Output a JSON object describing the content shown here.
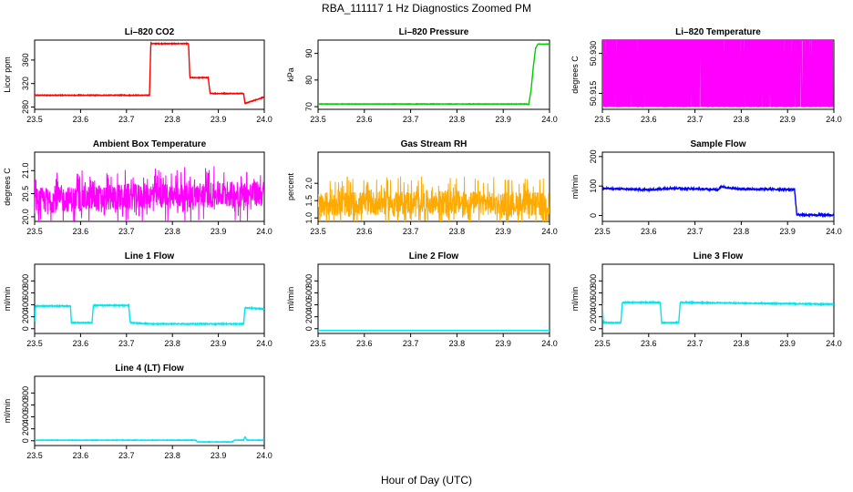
{
  "figure": {
    "title": "RBA_111117  1 Hz Diagnostics Zoomed PM",
    "xlabel": "Hour of Day (UTC)"
  },
  "chart_data": [
    {
      "type": "line",
      "title": "Li–820 CO2",
      "ylabel": "Licor ppm",
      "color": "#ff0000",
      "xlim": [
        23.5,
        24.0
      ],
      "ylim": [
        276,
        394
      ],
      "xticks": [
        "23.5",
        "23.6",
        "23.7",
        "23.8",
        "23.9",
        "24.0"
      ],
      "yticks": [
        "280",
        "320",
        "360"
      ],
      "pattern": "steps",
      "noise": 0.6,
      "x": [
        23.5,
        23.75,
        23.753,
        23.835,
        23.838,
        23.878,
        23.882,
        23.955,
        23.958,
        24.0
      ],
      "y": [
        300,
        300,
        388,
        388,
        330,
        330,
        303,
        303,
        286,
        297
      ]
    },
    {
      "type": "line",
      "title": "Li–820 Pressure",
      "ylabel": "kPa",
      "color": "#00cc00",
      "xlim": [
        23.5,
        24.0
      ],
      "ylim": [
        69,
        95
      ],
      "xticks": [
        "23.5",
        "23.6",
        "23.7",
        "23.8",
        "23.9",
        "24.0"
      ],
      "yticks": [
        "70",
        "80",
        "90"
      ],
      "pattern": "steps",
      "noise": 0.08,
      "x": [
        23.5,
        23.95,
        23.955,
        23.96,
        23.965,
        23.97,
        23.975,
        24.0
      ],
      "y": [
        71,
        71,
        70.8,
        76,
        85,
        92,
        93.5,
        93.5
      ]
    },
    {
      "type": "line",
      "title": "Li–820 Temperature",
      "ylabel": "degrees C",
      "color": "#ff00ff",
      "xlim": [
        23.5,
        24.0
      ],
      "ylim": [
        50.909,
        50.935
      ],
      "xticks": [
        "23.5",
        "23.6",
        "23.7",
        "23.8",
        "23.9",
        "24.0"
      ],
      "yticks": [
        "50.915",
        "50.930"
      ],
      "pattern": "binary",
      "levels": [
        50.91,
        50.935
      ],
      "switch": 0.85,
      "x": [
        23.5,
        24.0
      ],
      "y": [
        50.91,
        50.935
      ]
    },
    {
      "type": "line",
      "title": "Ambient Box Temperature",
      "ylabel": "degrees C",
      "color": "#ff00ff",
      "xlim": [
        23.5,
        24.0
      ],
      "ylim": [
        19.9,
        21.4
      ],
      "xticks": [
        "23.5",
        "23.6",
        "23.7",
        "23.8",
        "23.9",
        "24.0"
      ],
      "yticks": [
        "20.0",
        "20.5",
        "21.0"
      ],
      "pattern": "noise",
      "noise": 0.28,
      "spikes": 0.2,
      "x": [
        23.5,
        23.75,
        24.0
      ],
      "y": [
        20.35,
        20.45,
        20.5
      ]
    },
    {
      "type": "line",
      "title": "Gas Stream RH",
      "ylabel": "percent",
      "color": "#ffaa00",
      "xlim": [
        23.5,
        24.0
      ],
      "ylim": [
        0.9,
        2.9
      ],
      "xticks": [
        "23.5",
        "23.6",
        "23.7",
        "23.8",
        "23.9",
        "24.0"
      ],
      "yticks": [
        "1.0",
        "1.5",
        "2.0"
      ],
      "pattern": "noise",
      "noise": 0.35,
      "spikes": 0.25,
      "x": [
        23.5,
        23.75,
        24.0
      ],
      "y": [
        1.4,
        1.45,
        1.4
      ]
    },
    {
      "type": "line",
      "title": "Sample Flow",
      "ylabel": "ml/min",
      "color": "#0000ff",
      "xlim": [
        23.5,
        24.0
      ],
      "ylim": [
        -20,
        215
      ],
      "xticks": [
        "23.5",
        "23.6",
        "23.7",
        "23.8",
        "23.9",
        "24.0"
      ],
      "yticks": [
        "0",
        "100",
        "200"
      ],
      "pattern": "steps",
      "noise": 3,
      "x": [
        23.5,
        23.6,
        23.65,
        23.75,
        23.755,
        23.8,
        23.915,
        23.92,
        24.0
      ],
      "y": [
        92,
        87,
        93,
        88,
        97,
        90,
        88,
        2,
        2
      ]
    },
    {
      "type": "line",
      "title": "Line 1 Flow",
      "ylabel": "ml/min",
      "color": "#00e5ee",
      "xlim": [
        23.5,
        24.0
      ],
      "ylim": [
        -80,
        1080
      ],
      "xticks": [
        "23.5",
        "23.6",
        "23.7",
        "23.8",
        "23.9",
        "24.0"
      ],
      "yticks": [
        "0",
        "200",
        "400",
        "600",
        "800"
      ],
      "pattern": "steps",
      "noise": 8,
      "x": [
        23.5,
        23.502,
        23.578,
        23.58,
        23.625,
        23.628,
        23.705,
        23.708,
        23.75,
        23.955,
        23.958,
        24.0
      ],
      "y": [
        120,
        380,
        380,
        100,
        100,
        390,
        390,
        100,
        80,
        80,
        350,
        330
      ]
    },
    {
      "type": "line",
      "title": "Line 2 Flow",
      "ylabel": "ml/min",
      "color": "#00e5ee",
      "xlim": [
        23.5,
        24.0
      ],
      "ylim": [
        -80,
        1080
      ],
      "xticks": [
        "23.5",
        "23.6",
        "23.7",
        "23.8",
        "23.9",
        "24.0"
      ],
      "yticks": [
        "0",
        "200",
        "400",
        "600",
        "800"
      ],
      "pattern": "steps",
      "noise": 0,
      "x": [
        23.5,
        24.0
      ],
      "y": [
        -30,
        -30
      ]
    },
    {
      "type": "line",
      "title": "Line 3 Flow",
      "ylabel": "ml/min",
      "color": "#00e5ee",
      "xlim": [
        23.5,
        24.0
      ],
      "ylim": [
        -80,
        1080
      ],
      "xticks": [
        "23.5",
        "23.6",
        "23.7",
        "23.8",
        "23.9",
        "24.0"
      ],
      "yticks": [
        "0",
        "200",
        "400",
        "600",
        "800"
      ],
      "pattern": "steps",
      "noise": 8,
      "x": [
        23.5,
        23.502,
        23.54,
        23.543,
        23.625,
        23.628,
        23.665,
        23.668,
        24.0
      ],
      "y": [
        420,
        100,
        100,
        440,
        440,
        100,
        100,
        440,
        410
      ]
    },
    {
      "type": "line",
      "title": "Line 4 (LT) Flow",
      "ylabel": "ml/min",
      "color": "#00e5ee",
      "xlim": [
        23.5,
        24.0
      ],
      "ylim": [
        -80,
        1080
      ],
      "xticks": [
        "23.5",
        "23.6",
        "23.7",
        "23.8",
        "23.9",
        "24.0"
      ],
      "yticks": [
        "0",
        "200",
        "400",
        "600",
        "800"
      ],
      "pattern": "steps",
      "noise": 4,
      "x": [
        23.5,
        23.85,
        23.855,
        23.93,
        23.935,
        23.955,
        23.958,
        23.962,
        24.0
      ],
      "y": [
        10,
        10,
        -20,
        -20,
        10,
        10,
        70,
        10,
        10
      ]
    }
  ]
}
